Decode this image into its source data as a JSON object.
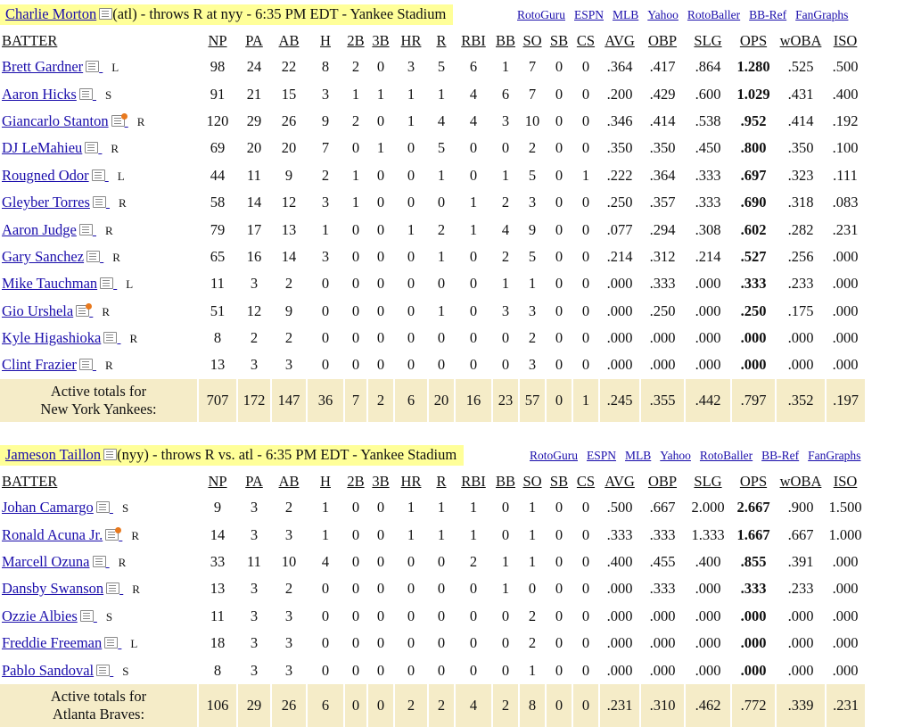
{
  "columns": [
    "BATTER",
    "NP",
    "PA",
    "AB",
    "H",
    "2B",
    "3B",
    "HR",
    "R",
    "RBI",
    "BB",
    "SO",
    "SB",
    "CS",
    "AVG",
    "OBP",
    "SLG",
    "OPS",
    "wOBA",
    "ISO"
  ],
  "links": [
    "RotoGuru",
    "ESPN",
    "MLB",
    "Yahoo",
    "RotoBaller",
    "BB-Ref",
    "FanGraphs"
  ],
  "games": [
    {
      "pitcher_name": "Charlie Morton",
      "pitcher_info": "(atl) - throws R at nyy - 6:35 PM EDT - Yankee Stadium",
      "rows": [
        {
          "name": "Brett Gardner",
          "hand": "L",
          "note": "plain",
          "stats": [
            "98",
            "24",
            "22",
            "8",
            "2",
            "0",
            "3",
            "5",
            "6",
            "1",
            "7",
            "0",
            "0",
            ".364",
            ".417",
            ".864",
            "1.280",
            ".525",
            ".500"
          ]
        },
        {
          "name": "Aaron Hicks",
          "hand": "S",
          "note": "plain",
          "stats": [
            "91",
            "21",
            "15",
            "3",
            "1",
            "1",
            "1",
            "1",
            "4",
            "6",
            "7",
            "0",
            "0",
            ".200",
            ".429",
            ".600",
            "1.029",
            ".431",
            ".400"
          ]
        },
        {
          "name": "Giancarlo Stanton",
          "hand": "R",
          "note": "hot",
          "stats": [
            "120",
            "29",
            "26",
            "9",
            "2",
            "0",
            "1",
            "4",
            "4",
            "3",
            "10",
            "0",
            "0",
            ".346",
            ".414",
            ".538",
            ".952",
            ".414",
            ".192"
          ]
        },
        {
          "name": "DJ LeMahieu",
          "hand": "R",
          "note": "plain",
          "stats": [
            "69",
            "20",
            "20",
            "7",
            "0",
            "1",
            "0",
            "5",
            "0",
            "0",
            "2",
            "0",
            "0",
            ".350",
            ".350",
            ".450",
            ".800",
            ".350",
            ".100"
          ]
        },
        {
          "name": "Rougned Odor",
          "hand": "L",
          "note": "plain",
          "stats": [
            "44",
            "11",
            "9",
            "2",
            "1",
            "0",
            "0",
            "1",
            "0",
            "1",
            "5",
            "0",
            "1",
            ".222",
            ".364",
            ".333",
            ".697",
            ".323",
            ".111"
          ]
        },
        {
          "name": "Gleyber Torres",
          "hand": "R",
          "note": "plain",
          "stats": [
            "58",
            "14",
            "12",
            "3",
            "1",
            "0",
            "0",
            "0",
            "1",
            "2",
            "3",
            "0",
            "0",
            ".250",
            ".357",
            ".333",
            ".690",
            ".318",
            ".083"
          ]
        },
        {
          "name": "Aaron Judge",
          "hand": "R",
          "note": "plain",
          "stats": [
            "79",
            "17",
            "13",
            "1",
            "0",
            "0",
            "1",
            "2",
            "1",
            "4",
            "9",
            "0",
            "0",
            ".077",
            ".294",
            ".308",
            ".602",
            ".282",
            ".231"
          ]
        },
        {
          "name": "Gary Sanchez",
          "hand": "R",
          "note": "plain",
          "stats": [
            "65",
            "16",
            "14",
            "3",
            "0",
            "0",
            "0",
            "1",
            "0",
            "2",
            "5",
            "0",
            "0",
            ".214",
            ".312",
            ".214",
            ".527",
            ".256",
            ".000"
          ]
        },
        {
          "name": "Mike Tauchman",
          "hand": "L",
          "note": "plain",
          "stats": [
            "11",
            "3",
            "2",
            "0",
            "0",
            "0",
            "0",
            "0",
            "0",
            "1",
            "1",
            "0",
            "0",
            ".000",
            ".333",
            ".000",
            ".333",
            ".233",
            ".000"
          ]
        },
        {
          "name": "Gio Urshela",
          "hand": "R",
          "note": "hot",
          "stats": [
            "51",
            "12",
            "9",
            "0",
            "0",
            "0",
            "0",
            "1",
            "0",
            "3",
            "3",
            "0",
            "0",
            ".000",
            ".250",
            ".000",
            ".250",
            ".175",
            ".000"
          ]
        },
        {
          "name": "Kyle Higashioka",
          "hand": "R",
          "note": "plain",
          "stats": [
            "8",
            "2",
            "2",
            "0",
            "0",
            "0",
            "0",
            "0",
            "0",
            "0",
            "2",
            "0",
            "0",
            ".000",
            ".000",
            ".000",
            ".000",
            ".000",
            ".000"
          ]
        },
        {
          "name": "Clint Frazier",
          "hand": "R",
          "note": "plain",
          "stats": [
            "13",
            "3",
            "3",
            "0",
            "0",
            "0",
            "0",
            "0",
            "0",
            "0",
            "3",
            "0",
            "0",
            ".000",
            ".000",
            ".000",
            ".000",
            ".000",
            ".000"
          ]
        }
      ],
      "totals_label": [
        "Active totals for",
        "New York Yankees:"
      ],
      "totals": [
        "707",
        "172",
        "147",
        "36",
        "7",
        "2",
        "6",
        "20",
        "16",
        "23",
        "57",
        "0",
        "1",
        ".245",
        ".355",
        ".442",
        ".797",
        ".352",
        ".197"
      ]
    },
    {
      "pitcher_name": "Jameson Taillon",
      "pitcher_info": "(nyy) - throws R vs. atl - 6:35 PM EDT - Yankee Stadium",
      "rows": [
        {
          "name": "Johan Camargo",
          "hand": "S",
          "note": "plain",
          "stats": [
            "9",
            "3",
            "2",
            "1",
            "0",
            "0",
            "1",
            "1",
            "1",
            "0",
            "1",
            "0",
            "0",
            ".500",
            ".667",
            "2.000",
            "2.667",
            ".900",
            "1.500"
          ]
        },
        {
          "name": "Ronald Acuna Jr.",
          "hand": "R",
          "note": "hot",
          "stats": [
            "14",
            "3",
            "3",
            "1",
            "0",
            "0",
            "1",
            "1",
            "1",
            "0",
            "1",
            "0",
            "0",
            ".333",
            ".333",
            "1.333",
            "1.667",
            ".667",
            "1.000"
          ]
        },
        {
          "name": "Marcell Ozuna",
          "hand": "R",
          "note": "plain",
          "stats": [
            "33",
            "11",
            "10",
            "4",
            "0",
            "0",
            "0",
            "0",
            "2",
            "1",
            "1",
            "0",
            "0",
            ".400",
            ".455",
            ".400",
            ".855",
            ".391",
            ".000"
          ]
        },
        {
          "name": "Dansby Swanson",
          "hand": "R",
          "note": "plain",
          "stats": [
            "13",
            "3",
            "2",
            "0",
            "0",
            "0",
            "0",
            "0",
            "0",
            "1",
            "0",
            "0",
            "0",
            ".000",
            ".333",
            ".000",
            ".333",
            ".233",
            ".000"
          ]
        },
        {
          "name": "Ozzie Albies",
          "hand": "S",
          "note": "plain",
          "stats": [
            "11",
            "3",
            "3",
            "0",
            "0",
            "0",
            "0",
            "0",
            "0",
            "0",
            "2",
            "0",
            "0",
            ".000",
            ".000",
            ".000",
            ".000",
            ".000",
            ".000"
          ]
        },
        {
          "name": "Freddie Freeman",
          "hand": "L",
          "note": "plain",
          "stats": [
            "18",
            "3",
            "3",
            "0",
            "0",
            "0",
            "0",
            "0",
            "0",
            "0",
            "2",
            "0",
            "0",
            ".000",
            ".000",
            ".000",
            ".000",
            ".000",
            ".000"
          ]
        },
        {
          "name": "Pablo Sandoval",
          "hand": "S",
          "note": "plain",
          "stats": [
            "8",
            "3",
            "3",
            "0",
            "0",
            "0",
            "0",
            "0",
            "0",
            "0",
            "1",
            "0",
            "0",
            ".000",
            ".000",
            ".000",
            ".000",
            ".000",
            ".000"
          ]
        }
      ],
      "totals_label": [
        "Active totals for",
        "Atlanta Braves:"
      ],
      "totals": [
        "106",
        "29",
        "26",
        "6",
        "0",
        "0",
        "2",
        "2",
        "4",
        "2",
        "8",
        "0",
        "0",
        ".231",
        ".310",
        ".462",
        ".772",
        ".339",
        ".231"
      ]
    }
  ]
}
